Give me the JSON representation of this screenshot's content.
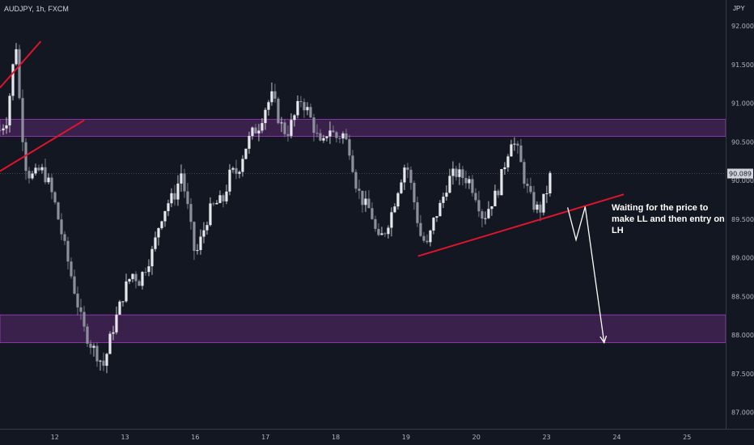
{
  "header": {
    "ticker": "AUDJPY, 1h, FXCM",
    "currency": "JPY"
  },
  "annotation": {
    "text": "Waiting for the price to make LL and then entry on LH"
  },
  "colors": {
    "background": "#131722",
    "candle": "#c6c9d1",
    "zone": "#5b2a6e",
    "zone_border": "#a23bc4",
    "trendline": "#e0142b",
    "arrow": "#ffffff"
  },
  "chart_data": {
    "type": "candlestick",
    "instrument": "AUDJPY",
    "timeframe": "1h",
    "last_price": "90.089",
    "y_axis": {
      "ticks": [
        "92.000",
        "91.500",
        "91.000",
        "90.500",
        "90.000",
        "89.500",
        "89.000",
        "88.500",
        "88.000",
        "87.500",
        "87.000"
      ],
      "ylim": [
        86.95,
        92.1
      ]
    },
    "x_axis": {
      "ticks": [
        {
          "label": "12",
          "day": 12
        },
        {
          "label": "13",
          "day": 13
        },
        {
          "label": "16",
          "day": 14
        },
        {
          "label": "17",
          "day": 15
        },
        {
          "label": "18",
          "day": 16
        },
        {
          "label": "19",
          "day": 17
        },
        {
          "label": "20",
          "day": 18
        },
        {
          "label": "23",
          "day": 19
        },
        {
          "label": "24",
          "day": 20
        },
        {
          "label": "25",
          "day": 21
        }
      ],
      "xlim": [
        11.22,
        21.55
      ]
    },
    "close_path": [
      [
        11.22,
        90.65
      ],
      [
        11.32,
        90.8
      ],
      [
        11.4,
        91.45
      ],
      [
        11.45,
        91.75
      ],
      [
        11.5,
        91.0
      ],
      [
        11.55,
        90.5
      ],
      [
        11.6,
        90.1
      ],
      [
        11.7,
        90.05
      ],
      [
        11.8,
        90.15
      ],
      [
        11.9,
        90.0
      ],
      [
        12.0,
        89.7
      ],
      [
        12.1,
        89.3
      ],
      [
        12.2,
        88.9
      ],
      [
        12.3,
        88.5
      ],
      [
        12.4,
        88.1
      ],
      [
        12.5,
        87.9
      ],
      [
        12.6,
        87.75
      ],
      [
        12.7,
        87.6
      ],
      [
        12.8,
        88.0
      ],
      [
        12.9,
        88.3
      ],
      [
        13.0,
        88.6
      ],
      [
        13.1,
        88.8
      ],
      [
        13.2,
        88.7
      ],
      [
        13.3,
        88.9
      ],
      [
        13.4,
        89.1
      ],
      [
        13.5,
        89.5
      ],
      [
        13.6,
        89.7
      ],
      [
        13.7,
        89.8
      ],
      [
        13.8,
        90.1
      ],
      [
        13.9,
        89.6
      ],
      [
        14.0,
        89.0
      ],
      [
        14.1,
        89.3
      ],
      [
        14.2,
        89.6
      ],
      [
        14.3,
        89.7
      ],
      [
        14.4,
        89.75
      ],
      [
        14.5,
        90.1
      ],
      [
        14.6,
        90.1
      ],
      [
        14.7,
        90.4
      ],
      [
        14.8,
        90.6
      ],
      [
        14.9,
        90.7
      ],
      [
        15.0,
        90.95
      ],
      [
        15.1,
        91.1
      ],
      [
        15.2,
        90.75
      ],
      [
        15.3,
        90.6
      ],
      [
        15.4,
        90.8
      ],
      [
        15.5,
        91.05
      ],
      [
        15.6,
        90.9
      ],
      [
        15.7,
        90.65
      ],
      [
        15.8,
        90.4
      ],
      [
        15.9,
        90.7
      ],
      [
        16.0,
        90.55
      ],
      [
        16.1,
        90.6
      ],
      [
        16.2,
        90.4
      ],
      [
        16.3,
        89.9
      ],
      [
        16.4,
        89.7
      ],
      [
        16.5,
        89.6
      ],
      [
        16.6,
        89.2
      ],
      [
        16.7,
        89.35
      ],
      [
        16.8,
        89.6
      ],
      [
        16.9,
        89.95
      ],
      [
        17.0,
        90.25
      ],
      [
        17.1,
        89.8
      ],
      [
        17.2,
        89.3
      ],
      [
        17.3,
        89.15
      ],
      [
        17.4,
        89.5
      ],
      [
        17.5,
        89.7
      ],
      [
        17.6,
        90.0
      ],
      [
        17.7,
        90.1
      ],
      [
        17.8,
        90.05
      ],
      [
        17.9,
        90.0
      ],
      [
        18.0,
        89.8
      ],
      [
        18.1,
        89.5
      ],
      [
        18.2,
        89.7
      ],
      [
        18.3,
        89.85
      ],
      [
        18.4,
        90.2
      ],
      [
        18.5,
        90.55
      ],
      [
        18.6,
        90.35
      ],
      [
        18.7,
        89.95
      ],
      [
        18.8,
        89.7
      ],
      [
        18.9,
        89.6
      ],
      [
        19.0,
        89.85
      ],
      [
        19.05,
        90.05
      ]
    ],
    "zones": [
      {
        "from": 90.57,
        "to": 90.79
      },
      {
        "from": 87.9,
        "to": 88.26
      }
    ],
    "trendlines": [
      {
        "x1": 11.22,
        "y1": 91.2,
        "x2": 11.8,
        "y2": 91.8
      },
      {
        "x1": 11.22,
        "y1": 90.12,
        "x2": 12.42,
        "y2": 90.78
      },
      {
        "x1": 17.17,
        "y1": 89.02,
        "x2": 20.1,
        "y2": 89.82
      }
    ],
    "projection_path": [
      [
        19.3,
        89.65
      ],
      [
        19.42,
        89.23
      ],
      [
        19.55,
        89.66
      ],
      [
        19.82,
        87.9
      ]
    ],
    "grid": false
  }
}
